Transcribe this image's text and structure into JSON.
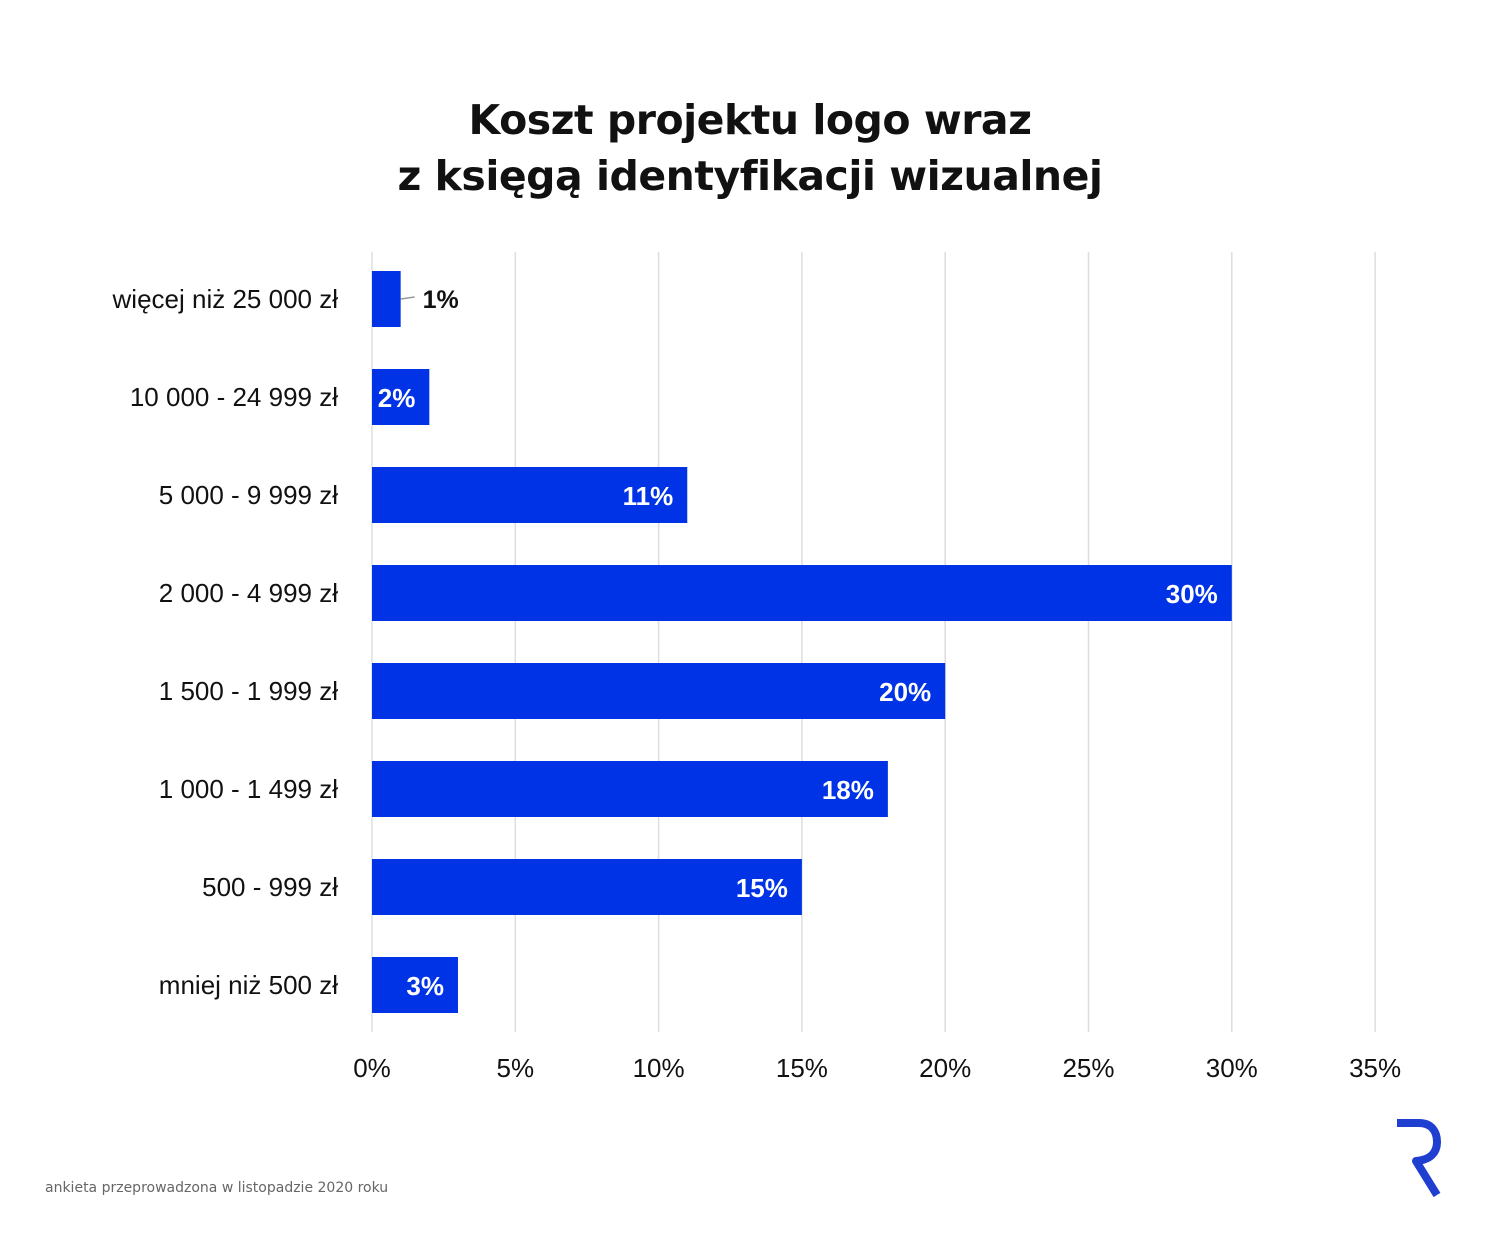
{
  "chart_data": {
    "type": "bar",
    "orientation": "horizontal",
    "title": [
      "Koszt projektu logo wraz",
      "z księgą identyfikacji wizualnej"
    ],
    "categories": [
      "więcej niż 25 000 zł",
      "10 000 - 24 999 zł",
      "5 000 - 9 999 zł",
      "2 000 - 4 999 zł",
      "1 500 - 1 999 zł",
      "1 000 - 1 499 zł",
      "500 - 999 zł",
      "mniej niż 500 zł"
    ],
    "values": [
      1,
      2,
      11,
      30,
      20,
      18,
      15,
      3
    ],
    "data_labels": [
      "1%",
      "2%",
      "11%",
      "30%",
      "20%",
      "18%",
      "15%",
      "3%"
    ],
    "xlim": [
      0,
      35
    ],
    "xticks": [
      0,
      5,
      10,
      15,
      20,
      25,
      30,
      35
    ],
    "xtick_labels": [
      "0%",
      "5%",
      "10%",
      "15%",
      "20%",
      "25%",
      "30%",
      "35%"
    ],
    "grid": "vertical",
    "bar_color": "#0033e6",
    "legend": "none"
  },
  "footnote": "ankieta przeprowadzona w listopadzie 2020 roku",
  "logo": {
    "icon": "r-logo-icon",
    "color": "#1f3fd1"
  }
}
